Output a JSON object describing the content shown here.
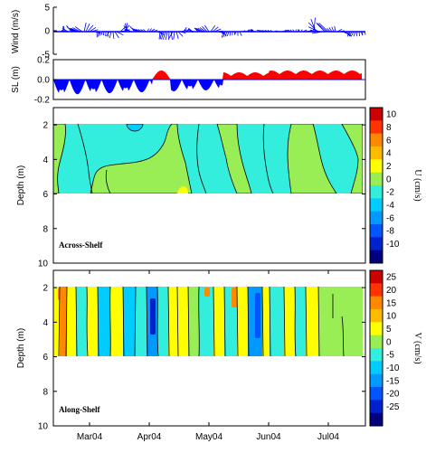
{
  "chart_data": [
    {
      "type": "line",
      "variant": "wind stick plot",
      "ylabel": "Wind (m/s)",
      "ylim": [
        -5,
        5
      ],
      "yticks": [
        5,
        0,
        -5
      ],
      "xlim": [
        "2004-02-15",
        "2004-07-31"
      ],
      "color": "#0000ff"
    },
    {
      "type": "area",
      "ylabel": "SL (m)",
      "ylim": [
        -0.2,
        0.2
      ],
      "yticks": [
        "0.2",
        "0.0",
        "-0.2"
      ],
      "positive_color": "#ff0000",
      "negative_color": "#0000ff"
    },
    {
      "type": "heatmap",
      "label": "Across-Shelf",
      "ylabel": "Depth (m)",
      "yticks": [
        2,
        4,
        6,
        8,
        10
      ],
      "ylim": [
        10,
        1
      ],
      "data_depth_range": [
        2,
        6
      ],
      "colorbar": {
        "label": "U (cm/s)",
        "ticks": [
          "10",
          "8",
          "6",
          "4",
          "2",
          "0",
          "-2",
          "-4",
          "-6",
          "-8",
          "-10"
        ],
        "colors": [
          "#cc0000",
          "#ff3300",
          "#ff8800",
          "#ffbb00",
          "#ffff00",
          "#99ee55",
          "#33eedd",
          "#00ccff",
          "#0099ff",
          "#0055ff",
          "#0022cc",
          "#000080"
        ]
      }
    },
    {
      "type": "heatmap",
      "label": "Along-Shelf",
      "ylabel": "Depth (m)",
      "yticks": [
        2,
        4,
        6,
        8,
        10
      ],
      "ylim": [
        10,
        1
      ],
      "data_depth_range": [
        2,
        6
      ],
      "xticks": [
        "Mar04",
        "Apr04",
        "May04",
        "Jun04",
        "Jul04"
      ],
      "colorbar": {
        "label": "V (cm/s)",
        "ticks": [
          "25",
          "20",
          "15",
          "10",
          "5",
          "0",
          "-5",
          "-10",
          "-15",
          "-20",
          "-25"
        ],
        "colors": [
          "#cc0000",
          "#ff3300",
          "#ff8800",
          "#ffbb00",
          "#ffff00",
          "#99ee55",
          "#33eedd",
          "#00ccff",
          "#0099ff",
          "#0055ff",
          "#0022cc",
          "#000080"
        ]
      }
    }
  ]
}
